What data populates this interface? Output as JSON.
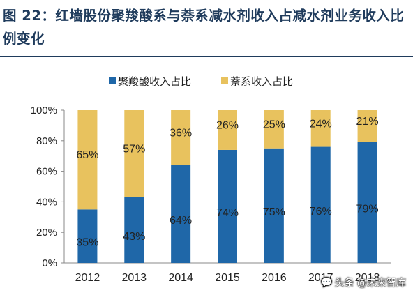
{
  "figure_title": "图 22：红墙股份聚羧酸系与萘系减水剂收入占减水剂业务收入比例变化",
  "watermark": {
    "icon": "chat-bubble-icon",
    "text": "头条 @未来智库"
  },
  "colors": {
    "series1": "#1f67a8",
    "series2": "#e8c25e",
    "title": "#1f3b5c"
  },
  "chart_data": {
    "type": "bar",
    "stacked": true,
    "categories": [
      "2012",
      "2013",
      "2014",
      "2015",
      "2016",
      "2017",
      "2018"
    ],
    "series": [
      {
        "name": "聚羧酸收入占比",
        "values": [
          35,
          43,
          64,
          74,
          75,
          76,
          79
        ],
        "labels": [
          "35%",
          "43%",
          "64%",
          "74%",
          "75%",
          "76%",
          "79%"
        ],
        "color": "#1f67a8"
      },
      {
        "name": "萘系收入占比",
        "values": [
          65,
          57,
          36,
          26,
          25,
          24,
          21
        ],
        "labels": [
          "65%",
          "57%",
          "36%",
          "26%",
          "25%",
          "24%",
          "21%"
        ],
        "color": "#e8c25e"
      }
    ],
    "yticks": [
      "0%",
      "20%",
      "40%",
      "60%",
      "80%",
      "100%"
    ],
    "ylim": [
      0,
      100
    ],
    "legend_position": "top-center",
    "grid": false
  }
}
